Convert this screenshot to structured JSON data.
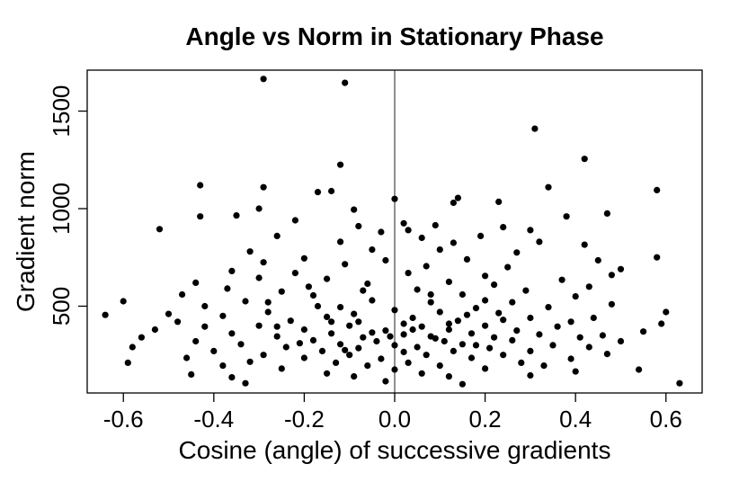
{
  "chart_data": {
    "type": "scatter",
    "title": "Angle vs Norm in Stationary Phase",
    "xlabel": "Cosine (angle) of successive gradients",
    "ylabel": "Gradient norm",
    "xlim": [
      -0.68,
      0.68
    ],
    "ylim": [
      55,
      1710
    ],
    "x_ticks": [
      -0.6,
      -0.4,
      -0.2,
      0.0,
      0.2,
      0.4,
      0.6
    ],
    "x_tick_labels": [
      "-0.6",
      "-0.4",
      "-0.2",
      "0.0",
      "0.2",
      "0.4",
      "0.6"
    ],
    "y_ticks": [
      500,
      1000,
      1500
    ],
    "y_tick_labels": [
      "500",
      "1000",
      "1500"
    ],
    "reference_line_x": 0.0,
    "grid": false,
    "marker_color": "#000000",
    "points": [
      [
        -0.29,
        1665
      ],
      [
        -0.11,
        1645
      ],
      [
        0.31,
        1410
      ],
      [
        0.42,
        1255
      ],
      [
        -0.12,
        1225
      ],
      [
        -0.43,
        1120
      ],
      [
        -0.29,
        1110
      ],
      [
        0.34,
        1110
      ],
      [
        0.58,
        1095
      ],
      [
        -0.17,
        1085
      ],
      [
        -0.14,
        1090
      ],
      [
        0.14,
        1055
      ],
      [
        0.0,
        1050
      ],
      [
        0.23,
        1035
      ],
      [
        0.13,
        1030
      ],
      [
        -0.3,
        1000
      ],
      [
        -0.09,
        995
      ],
      [
        0.47,
        975
      ],
      [
        -0.35,
        965
      ],
      [
        -0.43,
        960
      ],
      [
        0.38,
        960
      ],
      [
        -0.22,
        940
      ],
      [
        0.02,
        925
      ],
      [
        0.09,
        915
      ],
      [
        -0.52,
        895
      ],
      [
        -0.08,
        910
      ],
      [
        0.24,
        905
      ],
      [
        0.03,
        890
      ],
      [
        0.3,
        890
      ],
      [
        -0.03,
        880
      ],
      [
        -0.26,
        860
      ],
      [
        0.06,
        850
      ],
      [
        0.19,
        860
      ],
      [
        -0.12,
        830
      ],
      [
        0.13,
        825
      ],
      [
        0.32,
        830
      ],
      [
        0.42,
        815
      ],
      [
        -0.32,
        780
      ],
      [
        -0.05,
        790
      ],
      [
        0.1,
        790
      ],
      [
        0.27,
        775
      ],
      [
        0.58,
        750
      ],
      [
        -0.2,
        745
      ],
      [
        -0.02,
        735
      ],
      [
        0.16,
        740
      ],
      [
        0.45,
        735
      ],
      [
        -0.29,
        725
      ],
      [
        -0.11,
        715
      ],
      [
        0.07,
        705
      ],
      [
        0.25,
        700
      ],
      [
        0.5,
        690
      ],
      [
        -0.36,
        680
      ],
      [
        -0.22,
        670
      ],
      [
        0.03,
        670
      ],
      [
        0.2,
        655
      ],
      [
        0.48,
        660
      ],
      [
        -0.3,
        645
      ],
      [
        -0.44,
        620
      ],
      [
        -0.15,
        640
      ],
      [
        0.12,
        625
      ],
      [
        0.37,
        635
      ],
      [
        -0.06,
        615
      ],
      [
        0.22,
        610
      ],
      [
        0.43,
        600
      ],
      [
        -0.37,
        590
      ],
      [
        -0.25,
        575
      ],
      [
        0.05,
        585
      ],
      [
        0.29,
        580
      ],
      [
        -0.47,
        560
      ],
      [
        -0.18,
        555
      ],
      [
        0.15,
        560
      ],
      [
        0.4,
        550
      ],
      [
        -0.6,
        525
      ],
      [
        -0.33,
        525
      ],
      [
        -0.05,
        530
      ],
      [
        0.08,
        520
      ],
      [
        0.26,
        520
      ],
      [
        0.48,
        510
      ],
      [
        -0.42,
        500
      ],
      [
        -0.12,
        495
      ],
      [
        0.18,
        490
      ],
      [
        0.34,
        495
      ],
      [
        -0.5,
        460
      ],
      [
        -0.64,
        455
      ],
      [
        -0.28,
        470
      ],
      [
        0.0,
        480
      ],
      [
        0.1,
        470
      ],
      [
        0.23,
        465
      ],
      [
        0.6,
        470
      ],
      [
        -0.38,
        450
      ],
      [
        -0.15,
        445
      ],
      [
        0.04,
        440
      ],
      [
        0.3,
        440
      ],
      [
        0.44,
        440
      ],
      [
        -0.48,
        420
      ],
      [
        -0.23,
        425
      ],
      [
        -0.08,
        420
      ],
      [
        0.14,
        425
      ],
      [
        0.39,
        420
      ],
      [
        0.59,
        410
      ],
      [
        -0.42,
        395
      ],
      [
        -0.3,
        400
      ],
      [
        -0.1,
        400
      ],
      [
        0.06,
        395
      ],
      [
        0.2,
        400
      ],
      [
        0.36,
        395
      ],
      [
        -0.53,
        380
      ],
      [
        -0.2,
        380
      ],
      [
        -0.02,
        375
      ],
      [
        0.12,
        380
      ],
      [
        0.27,
        375
      ],
      [
        0.55,
        370
      ],
      [
        -0.36,
        360
      ],
      [
        -0.14,
        360
      ],
      [
        0.02,
        355
      ],
      [
        0.17,
        360
      ],
      [
        0.32,
        355
      ],
      [
        0.46,
        350
      ],
      [
        -0.56,
        340
      ],
      [
        -0.26,
        345
      ],
      [
        -0.07,
        340
      ],
      [
        0.08,
        345
      ],
      [
        0.22,
        340
      ],
      [
        0.41,
        340
      ],
      [
        -0.44,
        320
      ],
      [
        -0.18,
        325
      ],
      [
        -0.04,
        320
      ],
      [
        0.11,
        320
      ],
      [
        0.26,
        325
      ],
      [
        0.5,
        320
      ],
      [
        -0.34,
        305
      ],
      [
        -0.12,
        305
      ],
      [
        0.0,
        300
      ],
      [
        0.15,
        305
      ],
      [
        0.35,
        300
      ],
      [
        -0.58,
        290
      ],
      [
        -0.24,
        290
      ],
      [
        -0.08,
        285
      ],
      [
        0.05,
        290
      ],
      [
        0.21,
        285
      ],
      [
        0.43,
        290
      ],
      [
        -0.4,
        270
      ],
      [
        -0.16,
        270
      ],
      [
        0.02,
        265
      ],
      [
        0.13,
        270
      ],
      [
        0.3,
        270
      ],
      [
        -0.29,
        250
      ],
      [
        -0.1,
        250
      ],
      [
        0.07,
        250
      ],
      [
        0.24,
        250
      ],
      [
        0.47,
        255
      ],
      [
        -0.46,
        235
      ],
      [
        -0.2,
        235
      ],
      [
        -0.03,
        230
      ],
      [
        0.17,
        235
      ],
      [
        0.39,
        230
      ],
      [
        -0.59,
        210
      ],
      [
        -0.32,
        215
      ],
      [
        -0.13,
        210
      ],
      [
        0.03,
        210
      ],
      [
        0.28,
        210
      ],
      [
        -0.38,
        195
      ],
      [
        -0.06,
        195
      ],
      [
        0.1,
        195
      ],
      [
        0.33,
        195
      ],
      [
        -0.25,
        180
      ],
      [
        0.0,
        175
      ],
      [
        0.2,
        180
      ],
      [
        0.54,
        175
      ],
      [
        -0.45,
        150
      ],
      [
        -0.15,
        155
      ],
      [
        0.06,
        155
      ],
      [
        0.4,
        165
      ],
      [
        -0.36,
        135
      ],
      [
        -0.09,
        140
      ],
      [
        0.12,
        140
      ],
      [
        0.3,
        145
      ],
      [
        -0.33,
        105
      ],
      [
        -0.02,
        115
      ],
      [
        0.15,
        100
      ],
      [
        0.63,
        105
      ],
      [
        -0.28,
        520
      ],
      [
        -0.17,
        500
      ],
      [
        -0.09,
        460
      ],
      [
        0.16,
        455
      ],
      [
        0.02,
        410
      ],
      [
        -0.05,
        365
      ],
      [
        0.09,
        335
      ],
      [
        -0.21,
        310
      ],
      [
        0.18,
        300
      ],
      [
        -0.11,
        275
      ],
      [
        0.04,
        380
      ],
      [
        -0.01,
        345
      ],
      [
        0.12,
        410
      ],
      [
        -0.14,
        420
      ],
      [
        0.24,
        430
      ],
      [
        -0.26,
        395
      ],
      [
        0.08,
        560
      ],
      [
        -0.07,
        580
      ],
      [
        0.2,
        530
      ],
      [
        -0.19,
        600
      ]
    ]
  }
}
